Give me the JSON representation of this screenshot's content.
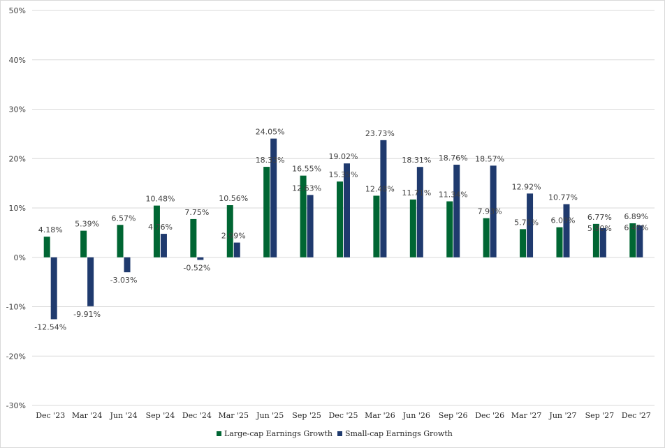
{
  "chart_data": {
    "type": "bar",
    "categories": [
      "Dec '23",
      "Mar '24",
      "Jun '24",
      "Sep '24",
      "Dec '24",
      "Mar '25",
      "Jun '25",
      "Sep '25",
      "Dec '25",
      "Mar '26",
      "Jun '26",
      "Sep '26",
      "Dec '26",
      "Mar '27",
      "Jun '27",
      "Sep '27",
      "Dec '27"
    ],
    "series": [
      {
        "name": "Large-cap Earnings Growth",
        "color": "#006633",
        "values": [
          4.18,
          5.39,
          6.57,
          10.48,
          7.75,
          10.56,
          18.33,
          16.55,
          15.35,
          12.48,
          11.71,
          11.34,
          7.93,
          5.71,
          6.09,
          6.77,
          6.89
        ],
        "labels": [
          "4.18%",
          "5.39%",
          "6.57%",
          "10.48%",
          "7.75%",
          "10.56%",
          "18.33%",
          "16.55%",
          "15.35%",
          "12.48%",
          "11.71%",
          "11.34%",
          "7.93%",
          "5.71%",
          "6.09%",
          "6.77%",
          "6.89%"
        ]
      },
      {
        "name": "Small-cap Earnings Growth",
        "color": "#1F3A6E",
        "values": [
          -12.54,
          -9.91,
          -3.03,
          4.76,
          -0.52,
          2.99,
          24.05,
          12.63,
          19.02,
          23.73,
          18.31,
          18.76,
          18.57,
          12.92,
          10.77,
          5.9,
          6.45
        ],
        "labels": [
          "-12.54%",
          "-9.91%",
          "-3.03%",
          "4.76%",
          "-0.52%",
          "2.99%",
          "24.05%",
          "12.63%",
          "19.02%",
          "23.73%",
          "18.31%",
          "18.76%",
          "18.57%",
          "12.92%",
          "10.77%",
          "5.90%",
          "6.45%"
        ]
      }
    ],
    "y_ticks": [
      "-30%",
      "-20%",
      "-10%",
      "0%",
      "10%",
      "20%",
      "30%",
      "40%",
      "50%"
    ],
    "ylim": [
      -30,
      50
    ],
    "grid": true,
    "legend_position": "bottom",
    "gridline_color": "#d9d9d9"
  }
}
